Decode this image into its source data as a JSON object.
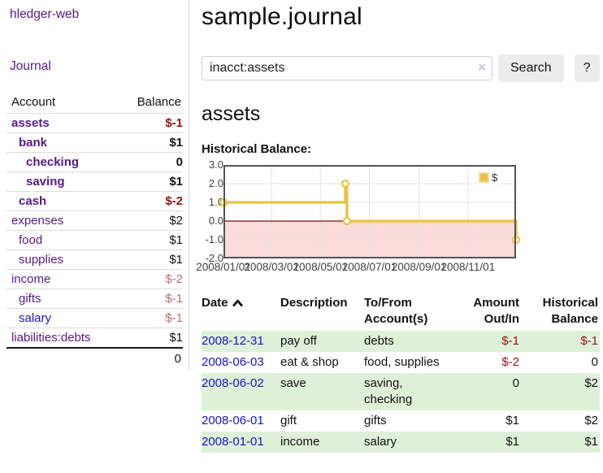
{
  "app": {
    "brand": "hledger-web",
    "nav_journal": "Journal"
  },
  "colors": {
    "link_purple": "#551a8b",
    "link_blue": "#1515d0",
    "negative_strong": "#941414",
    "negative_soft": "#c06a6e",
    "row_green": "#dff0d8",
    "series_gold": "#edc240",
    "negative_region_pink": "#fbdada",
    "zero_line_dark_red": "#7d0d0d",
    "plot_border_gray": "#545454"
  },
  "sidebar": {
    "accounts_table": {
      "headers": {
        "account": "Account",
        "balance": "Balance"
      },
      "rows": [
        {
          "account": "assets",
          "balance": "$-1",
          "indent": 0,
          "bold": true,
          "balance_tone": "neg-strong",
          "link_tone": "purple"
        },
        {
          "account": "bank",
          "balance": "$1",
          "indent": 1,
          "bold": true,
          "balance_tone": "normal",
          "link_tone": "purple"
        },
        {
          "account": "checking",
          "balance": "0",
          "indent": 2,
          "bold": true,
          "balance_tone": "normal",
          "link_tone": "purple"
        },
        {
          "account": "saving",
          "balance": "$1",
          "indent": 2,
          "bold": true,
          "balance_tone": "normal",
          "link_tone": "purple"
        },
        {
          "account": "cash",
          "balance": "$-2",
          "indent": 1,
          "bold": true,
          "balance_tone": "neg-strong",
          "link_tone": "purple"
        },
        {
          "account": "expenses",
          "balance": "$2",
          "indent": 0,
          "bold": false,
          "balance_tone": "normal",
          "link_tone": "purple"
        },
        {
          "account": "food",
          "balance": "$1",
          "indent": 1,
          "bold": false,
          "balance_tone": "normal",
          "link_tone": "purple"
        },
        {
          "account": "supplies",
          "balance": "$1",
          "indent": 1,
          "bold": false,
          "balance_tone": "normal",
          "link_tone": "purple"
        },
        {
          "account": "income",
          "balance": "$-2",
          "indent": 0,
          "bold": false,
          "balance_tone": "neg-soft",
          "link_tone": "purple"
        },
        {
          "account": "gifts",
          "balance": "$-1",
          "indent": 1,
          "bold": false,
          "balance_tone": "neg-soft",
          "link_tone": "purple"
        },
        {
          "account": "salary",
          "balance": "$-1",
          "indent": 1,
          "bold": false,
          "balance_tone": "neg-soft",
          "link_tone": "blue"
        },
        {
          "account": "liabilities:debts",
          "balance": "$1",
          "indent": 0,
          "bold": false,
          "balance_tone": "normal",
          "link_tone": "purple"
        }
      ],
      "total": "0"
    }
  },
  "header": {
    "title": "sample.journal"
  },
  "search": {
    "value": "inacct:assets",
    "clear_icon": "×",
    "button_label": "Search",
    "help_label": "?"
  },
  "account_page": {
    "heading": "assets",
    "chart_label": "Historical Balance:"
  },
  "chart_data": {
    "type": "line",
    "steps": true,
    "title": "Historical Balance:",
    "ylim": [
      -2.0,
      3.0
    ],
    "xrange_days": 365,
    "grid": true,
    "legend": {
      "label": "$",
      "position": "top-right"
    },
    "yticks": [
      {
        "label": "3.0",
        "value": 3.0
      },
      {
        "label": "2.0",
        "value": 2.0
      },
      {
        "label": "1.0",
        "value": 1.0
      },
      {
        "label": "0.0",
        "value": 0.0
      },
      {
        "label": "-1.0",
        "value": -1.0
      },
      {
        "label": "-2.0",
        "value": -2.0
      }
    ],
    "xticks": [
      {
        "label": "2008/01/01",
        "day": 0
      },
      {
        "label": "2008/03/01",
        "day": 60
      },
      {
        "label": "2008/05/01",
        "day": 121
      },
      {
        "label": "2008/07/01",
        "day": 182
      },
      {
        "label": "2008/09/01",
        "day": 244
      },
      {
        "label": "2008/11/01",
        "day": 305
      }
    ],
    "series": [
      {
        "name": "$",
        "color": "#edc240",
        "points": [
          {
            "date": "2008-01-01",
            "day": 0,
            "value": 1.0
          },
          {
            "date": "2008-06-01",
            "day": 152,
            "value": 2.0
          },
          {
            "date": "2008-06-03",
            "day": 154,
            "value": 0.0
          },
          {
            "date": "2008-12-31",
            "day": 365,
            "value": -1.0
          }
        ]
      }
    ]
  },
  "register_table": {
    "headers": {
      "date": "Date",
      "description": "Description",
      "accounts": "To/From\nAccount(s)",
      "amount": "Amount\nOut/In",
      "balance": "Historical\nBalance"
    },
    "sort": {
      "column": "date",
      "direction": "asc"
    },
    "rows": [
      {
        "date": "2008-12-31",
        "description": "pay off",
        "accounts": "debts",
        "amount": "$-1",
        "balance": "$-1",
        "green": true
      },
      {
        "date": "2008-06-03",
        "description": "eat & shop",
        "accounts": "food, supplies",
        "amount": "$-2",
        "balance": "0",
        "green": false
      },
      {
        "date": "2008-06-02",
        "description": "save",
        "accounts": "saving,\nchecking",
        "amount": "0",
        "balance": "$2",
        "green": true
      },
      {
        "date": "2008-06-01",
        "description": "gift",
        "accounts": "gifts",
        "amount": "$1",
        "balance": "$2",
        "green": false
      },
      {
        "date": "2008-01-01",
        "description": "income",
        "accounts": "salary",
        "amount": "$1",
        "balance": "$1",
        "green": true
      }
    ]
  }
}
